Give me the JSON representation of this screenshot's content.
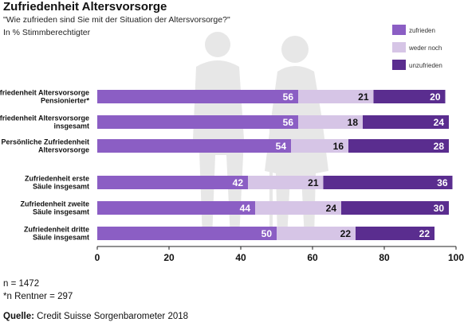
{
  "header": {
    "title": "Zufriedenheit Altersvorsorge",
    "subtitle": "\"Wie zufrieden sind Sie mit der Situation der Altersvorsorge?\"",
    "unit": "In % Stimmberechtigter"
  },
  "footer": {
    "n_total": "n = 1472",
    "n_rentner": "*n Rentner = 297",
    "source_label": "Quelle:",
    "source_text": " Credit Suisse Sorgenbarometer 2018"
  },
  "colors": {
    "zufrieden": "#8b5ec4",
    "weder_noch": "#d6c5e6",
    "unzufrieden": "#5a2d8f",
    "silhouette": "#e7e7e7"
  },
  "chart_data": {
    "type": "bar",
    "orientation": "horizontal",
    "stacked": true,
    "title": "Zufriedenheit Altersvorsorge",
    "categories": [
      [
        "Zufriedenheit Altersvorsorge",
        "Pensionierter*"
      ],
      [
        "Zufriedenheit Altersvorsorge",
        "insgesamt"
      ],
      [
        "Persönliche Zufriedenheit",
        "Altersvorsorge"
      ],
      [
        "Zufriedenheit erste",
        "Säule insgesamt"
      ],
      [
        "Zufriedenheit zweite",
        "Säule insgesamt"
      ],
      [
        "Zufriedenheit dritte",
        "Säule insgesamt"
      ]
    ],
    "series": [
      {
        "name": "zufrieden",
        "values": [
          56,
          56,
          54,
          42,
          44,
          50
        ]
      },
      {
        "name": "weder noch",
        "values": [
          21,
          18,
          16,
          21,
          24,
          22
        ]
      },
      {
        "name": "unzufrieden",
        "values": [
          20,
          24,
          28,
          36,
          30,
          22
        ]
      }
    ],
    "xlim": [
      0,
      100
    ],
    "xticks": [
      0,
      20,
      40,
      60,
      80,
      100
    ],
    "grid": false,
    "legend_position": "top-right"
  }
}
